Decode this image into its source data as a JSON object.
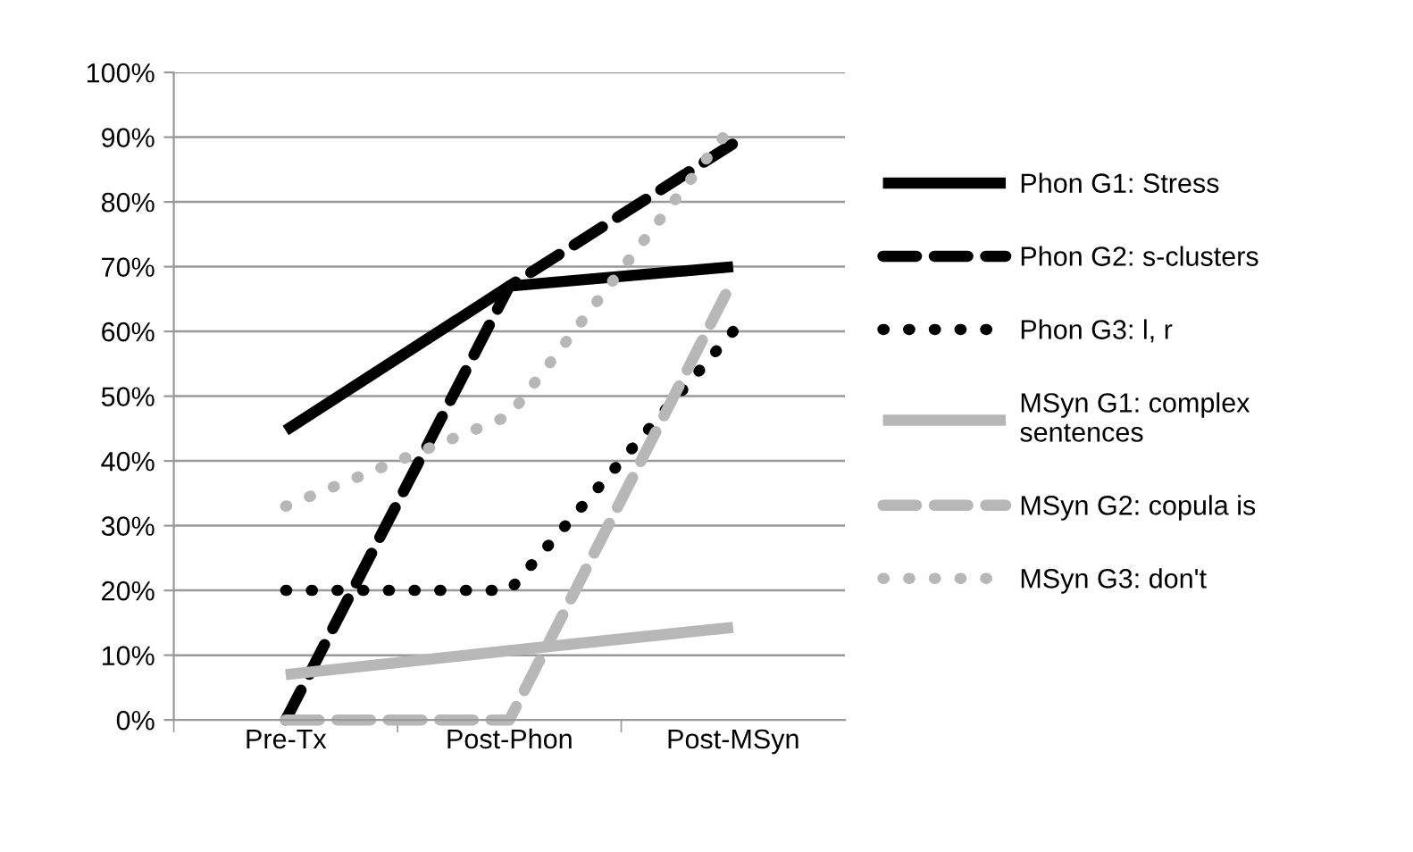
{
  "chart_data": {
    "type": "line",
    "categories": [
      "Pre-Tx",
      "Post-Phon",
      "Post-MSyn"
    ],
    "series": [
      {
        "name": "Phon G1: Stress",
        "color": "#000000",
        "line_style": "solid",
        "values": [
          44.7,
          67,
          70
        ]
      },
      {
        "name": "Phon G2: s-clusters",
        "color": "#000000",
        "line_style": "dashed",
        "values": [
          0,
          67,
          89
        ]
      },
      {
        "name": "Phon G3: l, r",
        "color": "#000000",
        "line_style": "dotted",
        "values": [
          20,
          20,
          60
        ]
      },
      {
        "name": "MSyn G1: complex\nsentences",
        "color": "#b7b7b7",
        "line_style": "solid",
        "values": [
          7,
          10.7,
          14.3
        ]
      },
      {
        "name": "MSyn G2: copula is",
        "color": "#b7b7b7",
        "line_style": "dashed",
        "values": [
          0,
          0,
          68
        ]
      },
      {
        "name": "MSyn G3: don't",
        "color": "#b7b7b7",
        "line_style": "dotted",
        "values": [
          33,
          47,
          92
        ]
      }
    ],
    "ylim": [
      0,
      100
    ],
    "yticks": [
      {
        "value": 0,
        "label": "0%"
      },
      {
        "value": 10,
        "label": "10%"
      },
      {
        "value": 20,
        "label": "20%"
      },
      {
        "value": 30,
        "label": "30%"
      },
      {
        "value": 40,
        "label": "40%"
      },
      {
        "value": 50,
        "label": "50%"
      },
      {
        "value": 60,
        "label": "60%"
      },
      {
        "value": 70,
        "label": "70%"
      },
      {
        "value": 80,
        "label": "80%"
      },
      {
        "value": 90,
        "label": "90%"
      },
      {
        "value": 100,
        "label": "100%"
      }
    ],
    "grid": "y",
    "legend": "right",
    "marker": "none"
  }
}
